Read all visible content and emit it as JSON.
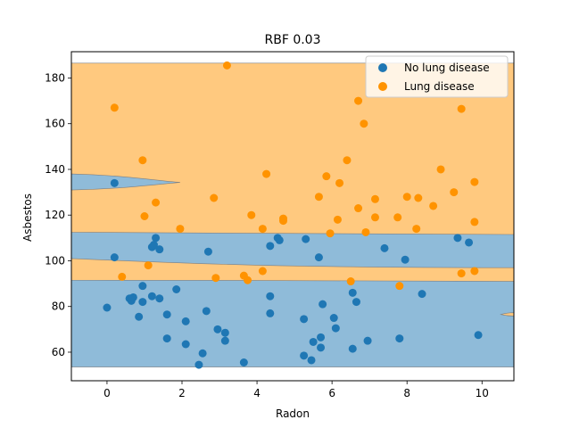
{
  "chart_data": {
    "type": "scatter",
    "title": "RBF 0.03",
    "xlabel": "Radon",
    "ylabel": "Asbestos",
    "xlim": [
      -0.95,
      10.85
    ],
    "ylim": [
      47.5,
      191.5
    ],
    "xticks": [
      0,
      2,
      4,
      6,
      8,
      10
    ],
    "yticks": [
      60,
      80,
      100,
      120,
      140,
      160,
      180
    ],
    "grid": false,
    "legend_position": "top-right",
    "colors": {
      "region_lung": "#ffc97f",
      "region_none": "#8fbbd9",
      "region_edge": "#7f7f7f",
      "no_lung": "#1f77b4",
      "lung": "#ff9300"
    },
    "decision_regions": {
      "outer_band": [
        53.5,
        186.5
      ],
      "lung_band_y": [
        91.5,
        101.0,
        97.0
      ],
      "lung_band_top_y": [
        112.5,
        112.0,
        111.5
      ],
      "upper_lobe": {
        "x0": -0.95,
        "x1": 1.95,
        "y_top": 138.0,
        "y_bottom": 131.0
      },
      "right_sliver": {
        "x0": 10.5,
        "y": 76.5
      }
    },
    "series": [
      {
        "name": "No lung disease",
        "points": [
          [
            0.2,
            134
          ],
          [
            0.2,
            101.5
          ],
          [
            0.0,
            79.5
          ],
          [
            0.6,
            83.5
          ],
          [
            0.65,
            82.5
          ],
          [
            0.7,
            84
          ],
          [
            0.85,
            75.5
          ],
          [
            0.95,
            89
          ],
          [
            0.95,
            82
          ],
          [
            1.2,
            106
          ],
          [
            1.2,
            84.5
          ],
          [
            1.25,
            107
          ],
          [
            1.3,
            110
          ],
          [
            1.4,
            105
          ],
          [
            1.4,
            83.5
          ],
          [
            1.6,
            76.5
          ],
          [
            1.6,
            66
          ],
          [
            1.85,
            87.5
          ],
          [
            2.1,
            73.5
          ],
          [
            2.1,
            63.5
          ],
          [
            2.45,
            54.5
          ],
          [
            2.55,
            59.5
          ],
          [
            2.65,
            78
          ],
          [
            2.7,
            104
          ],
          [
            2.95,
            70
          ],
          [
            3.15,
            68.5
          ],
          [
            3.15,
            65
          ],
          [
            3.65,
            55.5
          ],
          [
            4.35,
            106.5
          ],
          [
            4.35,
            84.5
          ],
          [
            4.35,
            77
          ],
          [
            4.55,
            110
          ],
          [
            4.6,
            109
          ],
          [
            5.25,
            74.5
          ],
          [
            5.25,
            58.5
          ],
          [
            5.3,
            109.5
          ],
          [
            5.45,
            56.5
          ],
          [
            5.5,
            64.5
          ],
          [
            5.65,
            101.5
          ],
          [
            5.7,
            66.5
          ],
          [
            5.7,
            62
          ],
          [
            5.75,
            81
          ],
          [
            6.05,
            75
          ],
          [
            6.1,
            70.5
          ],
          [
            6.55,
            86
          ],
          [
            6.55,
            61.5
          ],
          [
            6.65,
            82
          ],
          [
            6.95,
            65
          ],
          [
            7.4,
            105.5
          ],
          [
            7.8,
            66
          ],
          [
            7.95,
            100.5
          ],
          [
            8.4,
            85.5
          ],
          [
            9.35,
            110
          ],
          [
            9.65,
            108
          ],
          [
            9.9,
            67.5
          ]
        ]
      },
      {
        "name": "Lung disease",
        "points": [
          [
            0.2,
            167
          ],
          [
            0.4,
            93
          ],
          [
            0.95,
            144
          ],
          [
            1.0,
            119.5
          ],
          [
            1.1,
            98
          ],
          [
            1.3,
            125.5
          ],
          [
            1.95,
            114
          ],
          [
            2.85,
            127.5
          ],
          [
            2.9,
            92.5
          ],
          [
            3.2,
            185.5
          ],
          [
            3.65,
            93.5
          ],
          [
            3.75,
            91.5
          ],
          [
            3.85,
            120
          ],
          [
            4.15,
            95.5
          ],
          [
            4.15,
            114
          ],
          [
            4.25,
            138
          ],
          [
            4.7,
            117.5
          ],
          [
            4.7,
            118.5
          ],
          [
            5.65,
            128
          ],
          [
            5.85,
            137
          ],
          [
            5.95,
            112
          ],
          [
            6.15,
            118
          ],
          [
            6.2,
            134
          ],
          [
            6.4,
            144
          ],
          [
            6.5,
            91
          ],
          [
            6.7,
            170
          ],
          [
            6.7,
            123
          ],
          [
            6.85,
            160
          ],
          [
            6.9,
            112.5
          ],
          [
            7.15,
            127
          ],
          [
            7.15,
            119
          ],
          [
            7.75,
            119
          ],
          [
            7.8,
            89
          ],
          [
            8.0,
            128
          ],
          [
            8.25,
            114
          ],
          [
            8.3,
            127.5
          ],
          [
            8.7,
            124
          ],
          [
            8.9,
            140
          ],
          [
            9.25,
            130
          ],
          [
            9.45,
            94.5
          ],
          [
            9.45,
            166.5
          ],
          [
            9.8,
            134.5
          ],
          [
            9.8,
            117
          ],
          [
            9.8,
            95.5
          ]
        ]
      }
    ]
  }
}
